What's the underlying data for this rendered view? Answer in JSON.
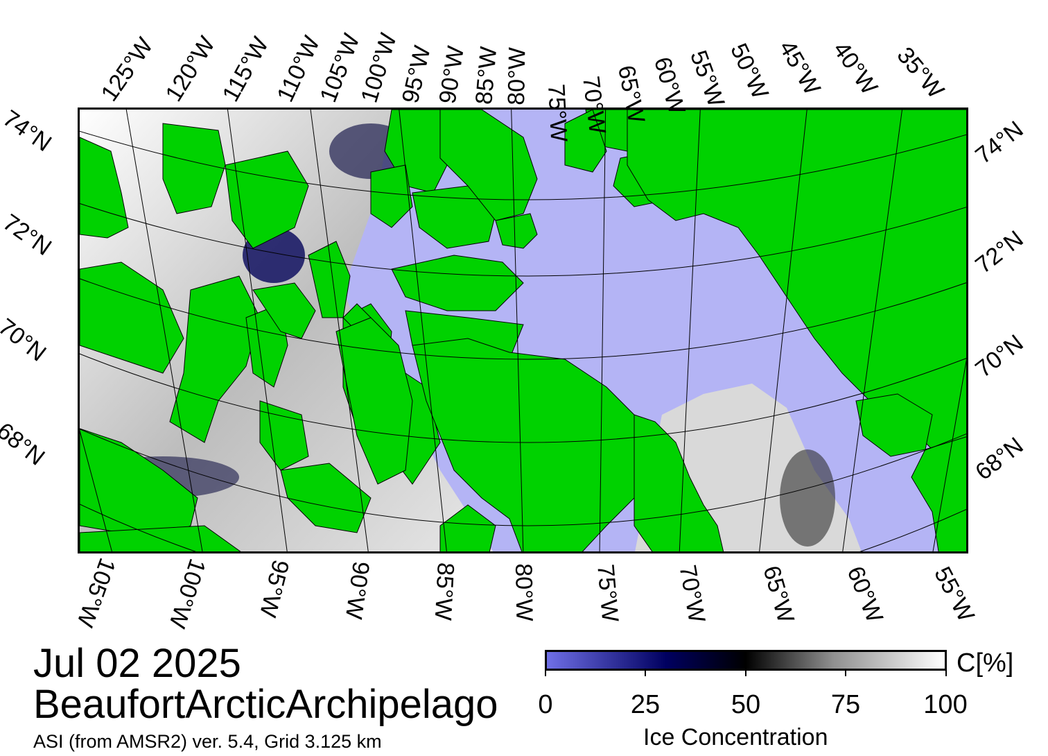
{
  "map": {
    "date": "Jul 02 2025",
    "region": "BeaufortArcticArchipelago",
    "product": "ASI (from AMSR2) ver. 5.4,  Grid 3.125 km",
    "top_lon_labels": [
      "125°W",
      "120°W",
      "115°W",
      "110°W",
      "105°W",
      "100°W",
      "95°W",
      "90°W",
      "85°W",
      "80°W",
      "75°W",
      "70°W",
      "65°W",
      "60°W",
      "55°W",
      "50°W",
      "45°W",
      "40°W",
      "35°W"
    ],
    "bottom_lon_labels": [
      "105°W",
      "100°W",
      "95°W",
      "90°W",
      "85°W",
      "80°W",
      "75°W",
      "70°W",
      "65°W",
      "60°W",
      "55°W"
    ],
    "left_lat_labels": [
      "74°N",
      "72°N",
      "70°N",
      "68°N"
    ],
    "right_lat_labels": [
      "74°N",
      "72°N",
      "70°N",
      "68°N"
    ],
    "colors": {
      "land": "#00d200",
      "open_water": "#b4b4f5",
      "ice_high": "#ffffff",
      "ice_low": "#000060",
      "grid": "#000000"
    }
  },
  "colorbar": {
    "ticks": [
      "0",
      "25",
      "50",
      "75",
      "100"
    ],
    "unit": "C[%]",
    "title": "Ice Concentration",
    "range": [
      0,
      100
    ]
  }
}
